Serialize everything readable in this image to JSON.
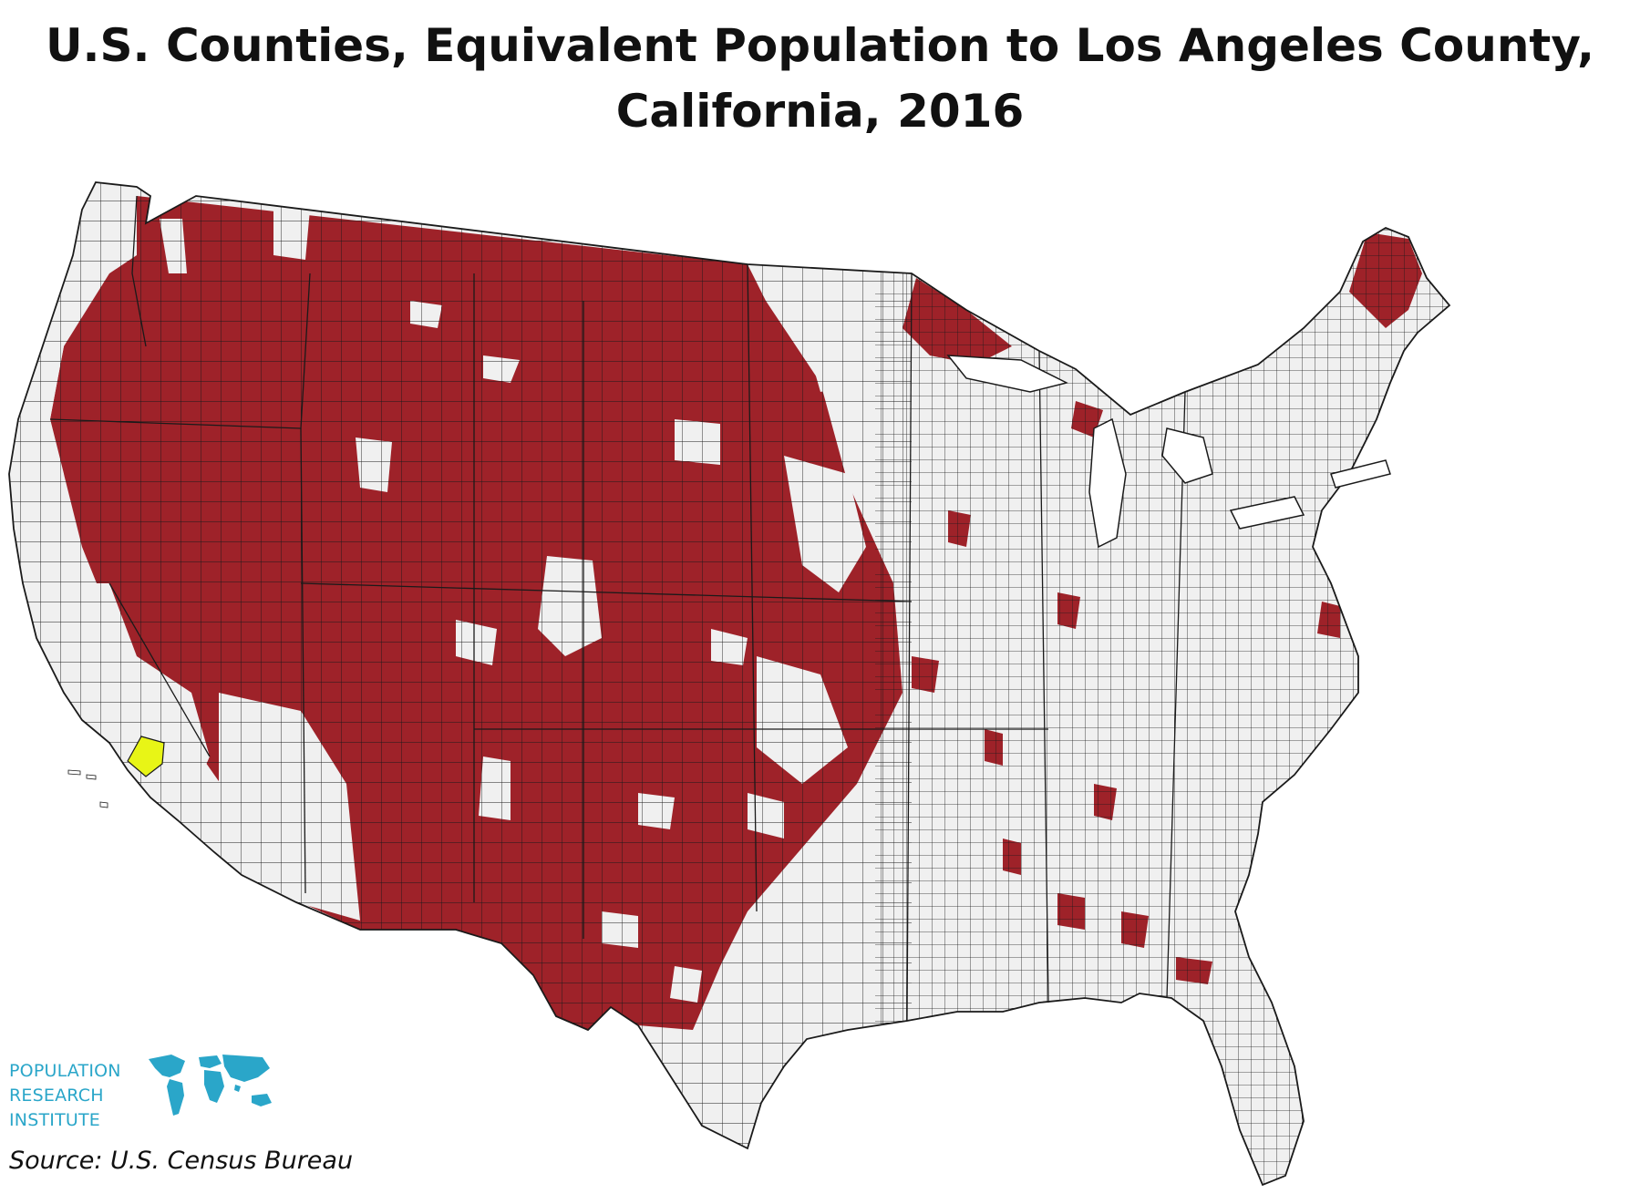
{
  "title": {
    "line1": "U.S. Counties, Equivalent Population to Los Angeles County,",
    "line2": "California, 2016"
  },
  "logo": {
    "line1": "POPULATION",
    "line2": "RESEARCH",
    "line3": "INSTITUTE",
    "icon": "world-map-icon",
    "color": "#2aa6c9"
  },
  "source": "Source: U.S. Census Bureau",
  "colors": {
    "highlight_counties": "#9e2229",
    "los_angeles_county": "#e8f516",
    "other_counties": "#f0f0f0",
    "borders": "#1a1a1a"
  }
}
